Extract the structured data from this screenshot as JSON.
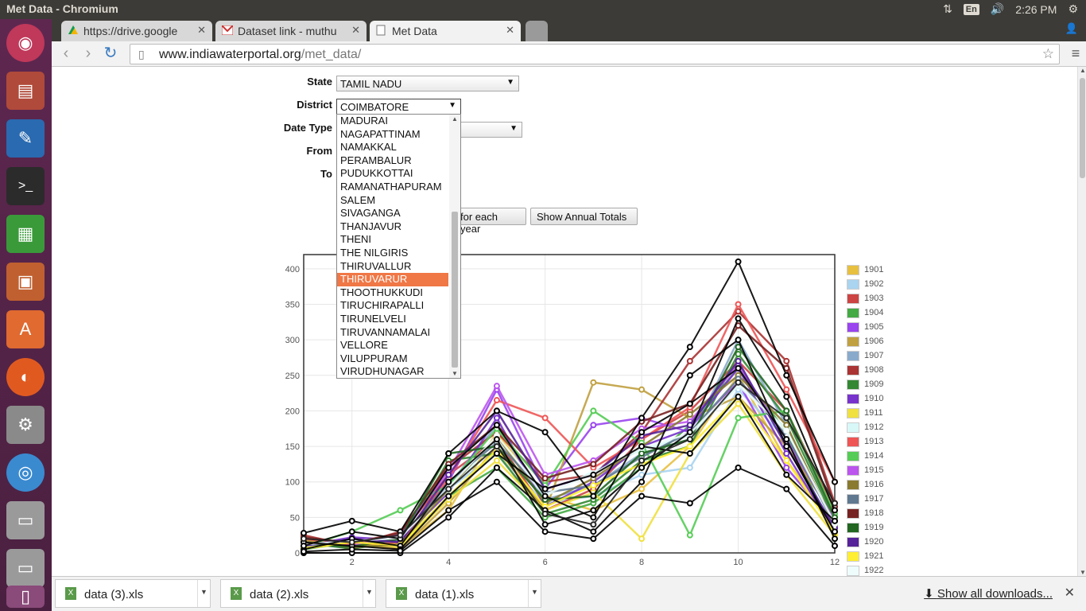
{
  "system": {
    "window_title": "Met Data - Chromium",
    "lang": "En",
    "clock": "2:26 PM"
  },
  "tabs": [
    {
      "label": "https://drive.google",
      "icon": "google-drive-icon"
    },
    {
      "label": "Dataset link - muthu",
      "icon": "gmail-icon"
    },
    {
      "label": "Met Data",
      "icon": "page-icon"
    }
  ],
  "address": {
    "domain": "www.indiawaterportal.org",
    "path": "/met_data/"
  },
  "form": {
    "state_label": "State",
    "state_value": "TAMIL NADU",
    "district_label": "District",
    "district_value": "COIMBATORE",
    "datetype_label": "Date Type",
    "from_label": "From",
    "to_label": "To",
    "btn_each_year": "for each year",
    "btn_annual": "Show Annual Totals"
  },
  "dropdown": {
    "options": [
      "MADURAI",
      "NAGAPATTINAM",
      "NAMAKKAL",
      "PERAMBALUR",
      "PUDUKKOTTAI",
      "RAMANATHAPURAM",
      "SALEM",
      "SIVAGANGA",
      "THANJAVUR",
      "THENI",
      "THE NILGIRIS",
      "THIRUVALLUR",
      "THIRUVARUR",
      "THOOTHUKKUDI",
      "TIRUCHIRAPALLI",
      "TIRUNELVELI",
      "TIRUVANNAMALAI",
      "VELLORE",
      "VILUPPURAM",
      "VIRUDHUNAGAR"
    ],
    "highlighted": "THIRUVARUR"
  },
  "chart_data": {
    "type": "line",
    "xlim": [
      1,
      12
    ],
    "ylim": [
      0,
      420
    ],
    "x_ticks": [
      "2",
      "4",
      "6",
      "8",
      "10",
      "12"
    ],
    "y_ticks": [
      "0",
      "50",
      "100",
      "150",
      "200",
      "250",
      "300",
      "350",
      "400"
    ],
    "x": [
      1,
      2,
      3,
      4,
      5,
      6,
      7,
      8,
      9,
      10,
      11,
      12
    ],
    "series": [
      {
        "name": "1901",
        "color": "#e8c040",
        "values": [
          15,
          10,
          8,
          60,
          170,
          80,
          60,
          90,
          150,
          250,
          130,
          40
        ]
      },
      {
        "name": "1902",
        "color": "#aad4f0",
        "values": [
          10,
          20,
          15,
          90,
          140,
          70,
          80,
          110,
          120,
          230,
          160,
          30
        ]
      },
      {
        "name": "1903",
        "color": "#cc4444",
        "values": [
          20,
          5,
          25,
          110,
          160,
          60,
          90,
          160,
          200,
          270,
          200,
          60
        ]
      },
      {
        "name": "1904",
        "color": "#44aa44",
        "values": [
          5,
          15,
          10,
          80,
          120,
          50,
          70,
          120,
          180,
          260,
          170,
          20
        ]
      },
      {
        "name": "1905",
        "color": "#9944ee",
        "values": [
          12,
          8,
          20,
          100,
          230,
          90,
          180,
          190,
          170,
          240,
          120,
          40
        ]
      },
      {
        "name": "1906",
        "color": "#c0a040",
        "values": [
          18,
          12,
          5,
          70,
          150,
          60,
          240,
          230,
          190,
          220,
          150,
          50
        ]
      },
      {
        "name": "1907",
        "color": "#8aaacc",
        "values": [
          8,
          18,
          12,
          95,
          180,
          75,
          95,
          140,
          160,
          300,
          180,
          35
        ]
      },
      {
        "name": "1908",
        "color": "#aa3333",
        "values": [
          25,
          10,
          30,
          120,
          170,
          100,
          110,
          170,
          270,
          340,
          270,
          70
        ]
      },
      {
        "name": "1909",
        "color": "#338833",
        "values": [
          14,
          6,
          16,
          130,
          140,
          55,
          75,
          130,
          150,
          280,
          190,
          45
        ]
      },
      {
        "name": "1910",
        "color": "#7733cc",
        "values": [
          10,
          22,
          18,
          85,
          190,
          65,
          100,
          150,
          175,
          260,
          140,
          30
        ]
      },
      {
        "name": "1911",
        "color": "#f0e040",
        "values": [
          6,
          14,
          9,
          75,
          130,
          60,
          85,
          20,
          140,
          210,
          110,
          25
        ]
      },
      {
        "name": "1912",
        "color": "#d8f8f8",
        "values": [
          12,
          16,
          22,
          88,
          160,
          80,
          115,
          145,
          165,
          235,
          175,
          40
        ]
      },
      {
        "name": "1913",
        "color": "#ee5555",
        "values": [
          20,
          12,
          14,
          105,
          215,
          190,
          120,
          160,
          205,
          350,
          230,
          100
        ]
      },
      {
        "name": "1914",
        "color": "#55cc55",
        "values": [
          9,
          30,
          60,
          95,
          175,
          95,
          200,
          155,
          25,
          190,
          200,
          55
        ]
      },
      {
        "name": "1915",
        "color": "#bb55ee",
        "values": [
          14,
          10,
          26,
          115,
          235,
          110,
          130,
          175,
          185,
          265,
          160,
          45
        ]
      },
      {
        "name": "1916",
        "color": "#8a7a30",
        "values": [
          16,
          8,
          12,
          90,
          165,
          70,
          105,
          150,
          195,
          250,
          180,
          38
        ]
      },
      {
        "name": "1917",
        "color": "#607890",
        "values": [
          11,
          18,
          17,
          100,
          155,
          85,
          95,
          135,
          170,
          245,
          165,
          42
        ]
      },
      {
        "name": "1918",
        "color": "#772222",
        "values": [
          22,
          14,
          28,
          125,
          180,
          105,
          125,
          185,
          210,
          320,
          260,
          65
        ]
      },
      {
        "name": "1919",
        "color": "#226622",
        "values": [
          13,
          9,
          20,
          140,
          150,
          75,
          80,
          140,
          160,
          290,
          200,
          50
        ]
      },
      {
        "name": "1920",
        "color": "#552299",
        "values": [
          10,
          20,
          15,
          110,
          200,
          90,
          110,
          165,
          180,
          270,
          150,
          35
        ]
      },
      {
        "name": "1921",
        "color": "#ffee33",
        "values": [
          7,
          15,
          11,
          80,
          145,
          65,
          95,
          125,
          150,
          220,
          130,
          28
        ]
      },
      {
        "name": "1922",
        "color": "#eefcfc",
        "values": [
          12,
          17,
          21,
          92,
          165,
          82,
          112,
          148,
          168,
          238,
          172,
          41
        ]
      }
    ],
    "overlay_series": [
      {
        "color": "#000000",
        "values": [
          28,
          45,
          30,
          140,
          200,
          170,
          80,
          190,
          290,
          410,
          250,
          100
        ]
      },
      {
        "color": "#000000",
        "values": [
          5,
          20,
          10,
          100,
          160,
          40,
          60,
          120,
          170,
          330,
          220,
          60
        ]
      },
      {
        "color": "#000000",
        "values": [
          0,
          0,
          0,
          50,
          120,
          60,
          30,
          100,
          250,
          300,
          150,
          30
        ]
      },
      {
        "color": "#000000",
        "values": [
          15,
          10,
          5,
          80,
          140,
          90,
          110,
          150,
          140,
          220,
          110,
          45
        ]
      },
      {
        "color": "#000000",
        "values": [
          10,
          30,
          20,
          120,
          180,
          80,
          50,
          170,
          210,
          260,
          160,
          20
        ]
      },
      {
        "color": "#000000",
        "values": [
          2,
          5,
          3,
          60,
          100,
          30,
          20,
          80,
          70,
          120,
          90,
          10
        ]
      },
      {
        "color": "#222222",
        "values": [
          20,
          15,
          25,
          90,
          150,
          55,
          40,
          130,
          160,
          240,
          190,
          70
        ]
      }
    ]
  },
  "downloads": {
    "items": [
      "data (3).xls",
      "data (2).xls",
      "data (1).xls"
    ],
    "show_all": "Show all downloads..."
  }
}
